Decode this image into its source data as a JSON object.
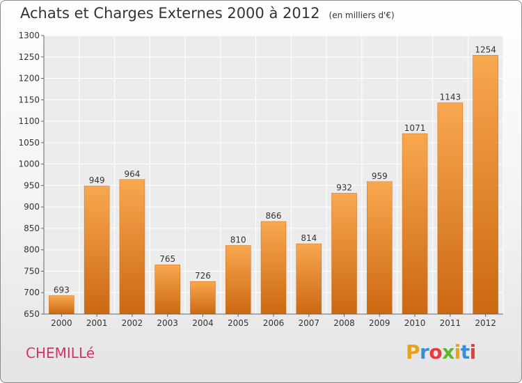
{
  "title": {
    "main": "Achats et Charges Externes 2000 à 2012",
    "unit": "(en milliers d'€)"
  },
  "town": "CHEMILLé",
  "logo": {
    "letters": [
      "P",
      "r",
      "o",
      "x",
      "i",
      "t",
      "i"
    ],
    "colors": [
      "#e8a317",
      "#3b8fd8",
      "#e83a3a",
      "#5cb82e",
      "#e8a317",
      "#3b8fd8",
      "#e83a3a"
    ]
  },
  "chart_data": {
    "type": "bar",
    "categories": [
      "2000",
      "2001",
      "2002",
      "2003",
      "2004",
      "2005",
      "2006",
      "2007",
      "2008",
      "2009",
      "2010",
      "2011",
      "2012"
    ],
    "values": [
      693,
      949,
      964,
      765,
      726,
      810,
      866,
      814,
      932,
      959,
      1071,
      1143,
      1254
    ],
    "ylim": [
      650,
      1300
    ],
    "yticks": [
      650,
      700,
      750,
      800,
      850,
      900,
      950,
      1000,
      1050,
      1100,
      1150,
      1200,
      1250,
      1300
    ],
    "grid": true,
    "bar_color": "#f08c2c"
  }
}
